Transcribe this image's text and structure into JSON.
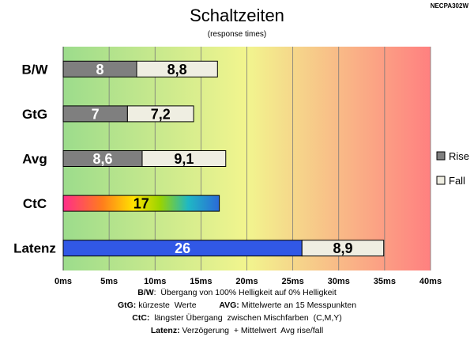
{
  "chart_data": {
    "type": "bar",
    "orientation": "horizontal",
    "stacked": true,
    "title": "Schaltzeiten",
    "subtitle": "(response times)",
    "model_code": "NECPA302W",
    "categories": [
      "B/W",
      "GtG",
      "Avg",
      "CtC",
      "Latenz"
    ],
    "series": [
      {
        "name": "Rise",
        "values": [
          8,
          7,
          8.6,
          17,
          26
        ],
        "labels": [
          "8",
          "7",
          "8,6",
          "17",
          "26"
        ]
      },
      {
        "name": "Fall",
        "values": [
          8.8,
          7.2,
          9.1,
          null,
          8.9
        ],
        "labels": [
          "8,8",
          "7,2",
          "9,1",
          "",
          "8,9"
        ]
      }
    ],
    "xlim": [
      0,
      40
    ],
    "x_ticks": [
      0,
      5,
      10,
      15,
      20,
      25,
      30,
      35,
      40
    ],
    "x_tick_labels": [
      "0ms",
      "5ms",
      "10ms",
      "15ms",
      "20ms",
      "25ms",
      "30ms",
      "35ms",
      "40ms"
    ],
    "grid": true,
    "legend_position": "right",
    "background_gradient": [
      "#9cdc8c",
      "#f2f58e",
      "#ff8080"
    ],
    "colors": {
      "rise": "#7f7f7f",
      "fall": "#efeee2",
      "latenz_rise": "#3158e6",
      "ctc_gradient": [
        "#ff2d8a",
        "#ff7d1c",
        "#ffe100",
        "#9ad400",
        "#1fb8c4",
        "#2b6ad8"
      ]
    }
  },
  "footnotes": [
    {
      "parts": [
        {
          "bold": true,
          "text": "B/W"
        },
        {
          "bold": false,
          "text": ":  Übergang von 100% Helligkeit auf 0% Helligkeit"
        }
      ]
    },
    {
      "parts": [
        {
          "bold": true,
          "text": "GtG:"
        },
        {
          "bold": false,
          "text": " kürzeste  Werte"
        },
        {
          "bold": true,
          "text": "          AVG:"
        },
        {
          "bold": false,
          "text": " Mittelwerte an 15 Messpunkten"
        }
      ]
    },
    {
      "parts": [
        {
          "bold": true,
          "text": "CtC:"
        },
        {
          "bold": false,
          "text": "  längster Übergang  zwischen Mischfarben  (C,M,Y)"
        }
      ]
    },
    {
      "parts": [
        {
          "bold": true,
          "text": "Latenz:"
        },
        {
          "bold": false,
          "text": " Verzögerung  + Mittelwert  Avg rise/fall"
        }
      ]
    }
  ]
}
